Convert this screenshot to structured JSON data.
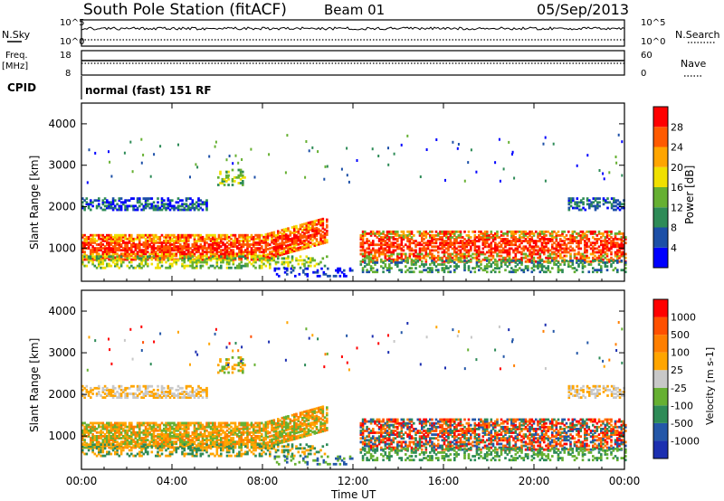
{
  "header": {
    "station": "South Pole Station (fitACF)",
    "beam": "Beam 01",
    "date": "05/Sep/2013"
  },
  "top_panels": {
    "nsky_label": "N.Sky",
    "nsearch_label": "N.Search",
    "nsky_ticks": [
      "10^5",
      "10^0"
    ],
    "freq_label_line1": "Freq.",
    "freq_label_line2": "[MHz]",
    "freq_ticks": [
      "18",
      "8"
    ],
    "nave_label": "Nave",
    "nave_ticks": [
      "60",
      "0"
    ],
    "cpid_label": "CPID",
    "cpid_value": "normal (fast) 151 RF"
  },
  "xaxis": {
    "label": "Time UT",
    "ticks": [
      "00:00",
      "04:00",
      "08:00",
      "12:00",
      "16:00",
      "20:00",
      "00:00"
    ],
    "range_hours": [
      0,
      24
    ]
  },
  "power_panel": {
    "ylabel": "Slant Range [km]",
    "yticks": [
      "1000",
      "2000",
      "3000",
      "4000"
    ],
    "colorbar_label": "Power [dB]",
    "colorbar_ticks": [
      "28",
      "24",
      "20",
      "16",
      "12",
      "8",
      "4"
    ],
    "colors": [
      "#0000ff",
      "#1c4fa7",
      "#2e8b57",
      "#66b032",
      "#f0e000",
      "#ffa500",
      "#ff5a00",
      "#ff0000"
    ]
  },
  "velocity_panel": {
    "ylabel": "Slant Range [km]",
    "yticks": [
      "1000",
      "2000",
      "3000",
      "4000"
    ],
    "colorbar_label": "Velocity [m s-1]",
    "colorbar_ticks": [
      "1000",
      "500",
      "100",
      "25",
      "-25",
      "-100",
      "-500",
      "-1000"
    ],
    "colors": [
      "#1c2fb0",
      "#2457a8",
      "#2e8b57",
      "#66b032",
      "#c8c8c8",
      "#ffa500",
      "#ff7f00",
      "#ff5000",
      "#ff0000"
    ]
  },
  "chart_data": {
    "type": "heatmap",
    "title": "South Pole Station (fitACF)  Beam 01  05/Sep/2013",
    "xlabel": "Time UT",
    "ylabel": "Slant Range [km]",
    "x_range_hours": [
      0,
      24
    ],
    "y_range_km": [
      200,
      4500
    ],
    "power_colorbar_range_db": [
      0,
      32
    ],
    "velocity_colorbar_range_ms": [
      -1000,
      1000
    ],
    "features": [
      {
        "description": "main echo band",
        "time_hours": [
          0,
          10.7
        ],
        "range_km": [
          700,
          1300
        ],
        "power_db": 28
      },
      {
        "description": "secondary band",
        "time_hours": [
          0,
          5.5
        ],
        "range_km": [
          1900,
          2200
        ],
        "power_db": 8
      },
      {
        "description": "echo band",
        "time_hours": [
          12.5,
          24
        ],
        "range_km": [
          600,
          1500
        ],
        "power_db": 24
      },
      {
        "description": "upper band",
        "time_hours": [
          21.5,
          24
        ],
        "range_km": [
          1900,
          2200
        ],
        "power_db": 8
      }
    ]
  }
}
